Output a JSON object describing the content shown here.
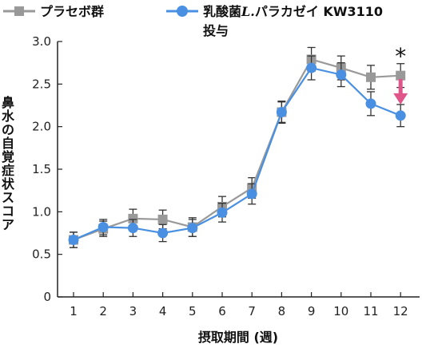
{
  "chart_data": {
    "type": "line",
    "xlabel": "摂取期間 (週)",
    "ylabel": "鼻水の自覚症状スコア",
    "x": [
      1,
      2,
      3,
      4,
      5,
      6,
      7,
      8,
      9,
      10,
      11,
      12
    ],
    "x_ticks": [
      "1",
      "2",
      "3",
      "4",
      "5",
      "6",
      "7",
      "8",
      "9",
      "10",
      "11",
      "12"
    ],
    "ylim": [
      0,
      3.0
    ],
    "y_ticks": [
      "0",
      "0.5",
      "1.0",
      "1.5",
      "2.0",
      "2.5",
      "3.0"
    ],
    "y_tick_values": [
      0,
      0.5,
      1.0,
      1.5,
      2.0,
      2.5,
      3.0
    ],
    "grid": false,
    "legend_position": "top",
    "series": [
      {
        "name": "プラセボ群",
        "color": "#999999",
        "marker": "square",
        "values": [
          0.67,
          0.8,
          0.92,
          0.91,
          0.82,
          1.06,
          1.28,
          2.17,
          2.79,
          2.69,
          2.58,
          2.6
        ],
        "err": [
          0.09,
          0.09,
          0.11,
          0.11,
          0.11,
          0.12,
          0.12,
          0.13,
          0.14,
          0.14,
          0.14,
          0.14
        ]
      },
      {
        "name_parts": [
          "乳酸菌",
          "L.",
          "パラカゼイ KW3110",
          "投与"
        ],
        "color": "#4a90e2",
        "marker": "circle",
        "values": [
          0.67,
          0.82,
          0.81,
          0.75,
          0.81,
          0.99,
          1.21,
          2.17,
          2.69,
          2.61,
          2.27,
          2.13
        ],
        "err": [
          0.09,
          0.09,
          0.1,
          0.1,
          0.1,
          0.11,
          0.12,
          0.12,
          0.14,
          0.14,
          0.14,
          0.13
        ]
      }
    ],
    "annotations": [
      {
        "text": "*",
        "x": 12,
        "y": 2.85
      },
      {
        "type": "arrow",
        "color": "#e0558a",
        "x": 12,
        "from": 2.56,
        "to": 2.26
      }
    ]
  }
}
